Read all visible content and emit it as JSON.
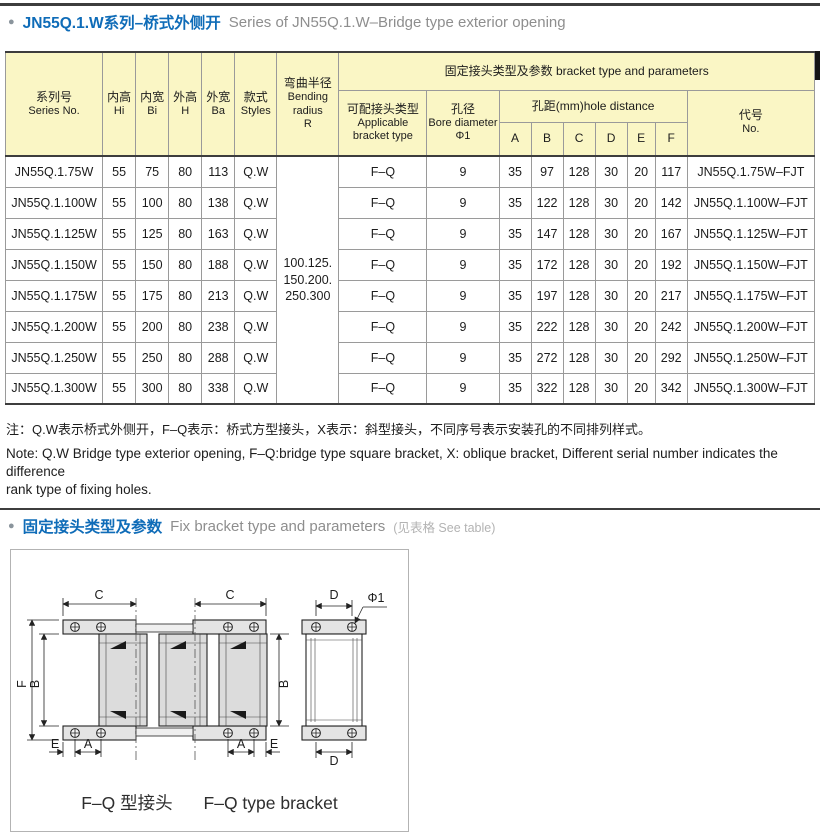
{
  "colors": {
    "title_blue": "#0f6cb8",
    "header_yellow": "#faf6c5"
  },
  "page": {
    "bullet": "●",
    "title_zh": "JN55Q.1.W系列–桥式外侧开",
    "title_en": "Series of JN55Q.1.W–Bridge type exterior opening"
  },
  "table": {
    "group_header": "固定接头类型及参数 bracket type and parameters",
    "col_series": {
      "zh": "系列号",
      "en": "Series No."
    },
    "col_hi": {
      "zh": "内高",
      "en": "Hi"
    },
    "col_bi": {
      "zh": "内宽",
      "en": "Bi"
    },
    "col_h": {
      "zh": "外高",
      "en": "H"
    },
    "col_ba": {
      "zh": "外宽",
      "en": "Ba"
    },
    "col_styles": {
      "zh": "款式",
      "en": "Styles"
    },
    "col_bending": {
      "zh": "弯曲半径",
      "en1": "Bending",
      "en2": "radius",
      "en3": "R"
    },
    "col_bracket": {
      "zh": "可配接头类型",
      "en1": "Applicable",
      "en2": "bracket type"
    },
    "col_bore": {
      "zh": "孔径",
      "en1": "Bore diameter",
      "en2": "Φ1"
    },
    "col_holes": {
      "label": "孔距(mm)hole distance",
      "cols": [
        "A",
        "B",
        "C",
        "D",
        "E",
        "F"
      ]
    },
    "col_code": {
      "zh": "代号",
      "en": "No."
    },
    "bending_radius": [
      "100.125.",
      "150.200.",
      "250.300"
    ],
    "rows": [
      [
        "JN55Q.1.75W",
        "55",
        "75",
        "80",
        "113",
        "Q.W",
        "F–Q",
        "9",
        "35",
        "97",
        "128",
        "30",
        "20",
        "117",
        "JN55Q.1.75W–FJT"
      ],
      [
        "JN55Q.1.100W",
        "55",
        "100",
        "80",
        "138",
        "Q.W",
        "F–Q",
        "9",
        "35",
        "122",
        "128",
        "30",
        "20",
        "142",
        "JN55Q.1.100W–FJT"
      ],
      [
        "JN55Q.1.125W",
        "55",
        "125",
        "80",
        "163",
        "Q.W",
        "F–Q",
        "9",
        "35",
        "147",
        "128",
        "30",
        "20",
        "167",
        "JN55Q.1.125W–FJT"
      ],
      [
        "JN55Q.1.150W",
        "55",
        "150",
        "80",
        "188",
        "Q.W",
        "F–Q",
        "9",
        "35",
        "172",
        "128",
        "30",
        "20",
        "192",
        "JN55Q.1.150W–FJT"
      ],
      [
        "JN55Q.1.175W",
        "55",
        "175",
        "80",
        "213",
        "Q.W",
        "F–Q",
        "9",
        "35",
        "197",
        "128",
        "30",
        "20",
        "217",
        "JN55Q.1.175W–FJT"
      ],
      [
        "JN55Q.1.200W",
        "55",
        "200",
        "80",
        "238",
        "Q.W",
        "F–Q",
        "9",
        "35",
        "222",
        "128",
        "30",
        "20",
        "242",
        "JN55Q.1.200W–FJT"
      ],
      [
        "JN55Q.1.250W",
        "55",
        "250",
        "80",
        "288",
        "Q.W",
        "F–Q",
        "9",
        "35",
        "272",
        "128",
        "30",
        "20",
        "292",
        "JN55Q.1.250W–FJT"
      ],
      [
        "JN55Q.1.300W",
        "55",
        "300",
        "80",
        "338",
        "Q.W",
        "F–Q",
        "9",
        "35",
        "322",
        "128",
        "30",
        "20",
        "342",
        "JN55Q.1.300W–FJT"
      ]
    ]
  },
  "notes": {
    "zh": "注：Q.W表示桥式外侧开，F–Q表示：桥式方型接头，X表示：斜型接头，不同序号表示安装孔的不同排列样式。",
    "en1": "Note: Q.W Bridge type exterior opening, F–Q:bridge type square bracket, X: oblique bracket, Different serial number indicates the difference",
    "en2": "rank type of fixing holes."
  },
  "section2": {
    "bullet": "●",
    "title_zh": "固定接头类型及参数",
    "title_en": "Fix bracket type and parameters",
    "note": "(见表格 See table)"
  },
  "diagram": {
    "caption_zh": "F–Q 型接头",
    "caption_en": "F–Q type bracket",
    "labels": {
      "c": "C",
      "d": "D",
      "phi": "Φ1",
      "f": "F",
      "b": "B",
      "a": "A",
      "e": "E"
    }
  }
}
